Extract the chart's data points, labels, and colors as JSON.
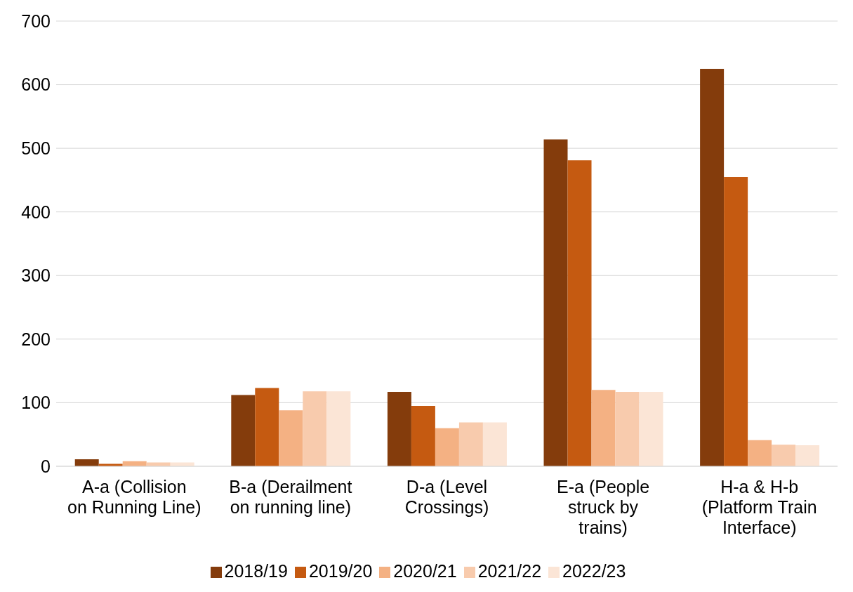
{
  "chart_data": {
    "type": "bar",
    "categories": [
      "A-a (Collision on Running Line)",
      "B-a (Derailment on running line)",
      "D-a (Level Crossings)",
      "E-a (People struck by trains)",
      "H-a & H-b (Platform Train Interface)"
    ],
    "series": [
      {
        "name": "2018/19",
        "color": "#843c0c",
        "values": [
          11,
          112,
          117,
          514,
          625
        ]
      },
      {
        "name": "2019/20",
        "color": "#c55a11",
        "values": [
          4,
          123,
          95,
          481,
          455
        ]
      },
      {
        "name": "2020/21",
        "color": "#f4b183",
        "values": [
          8,
          88,
          60,
          120,
          41
        ]
      },
      {
        "name": "2021/22",
        "color": "#f8cbad",
        "values": [
          6,
          118,
          69,
          117,
          34
        ]
      },
      {
        "name": "2022/23",
        "color": "#fbe5d6",
        "values": [
          6,
          118,
          69,
          117,
          33
        ]
      }
    ],
    "ylim": [
      0,
      700
    ],
    "yticks": [
      0,
      100,
      200,
      300,
      400,
      500,
      600,
      700
    ],
    "grid": "y",
    "legend": "bottom"
  }
}
